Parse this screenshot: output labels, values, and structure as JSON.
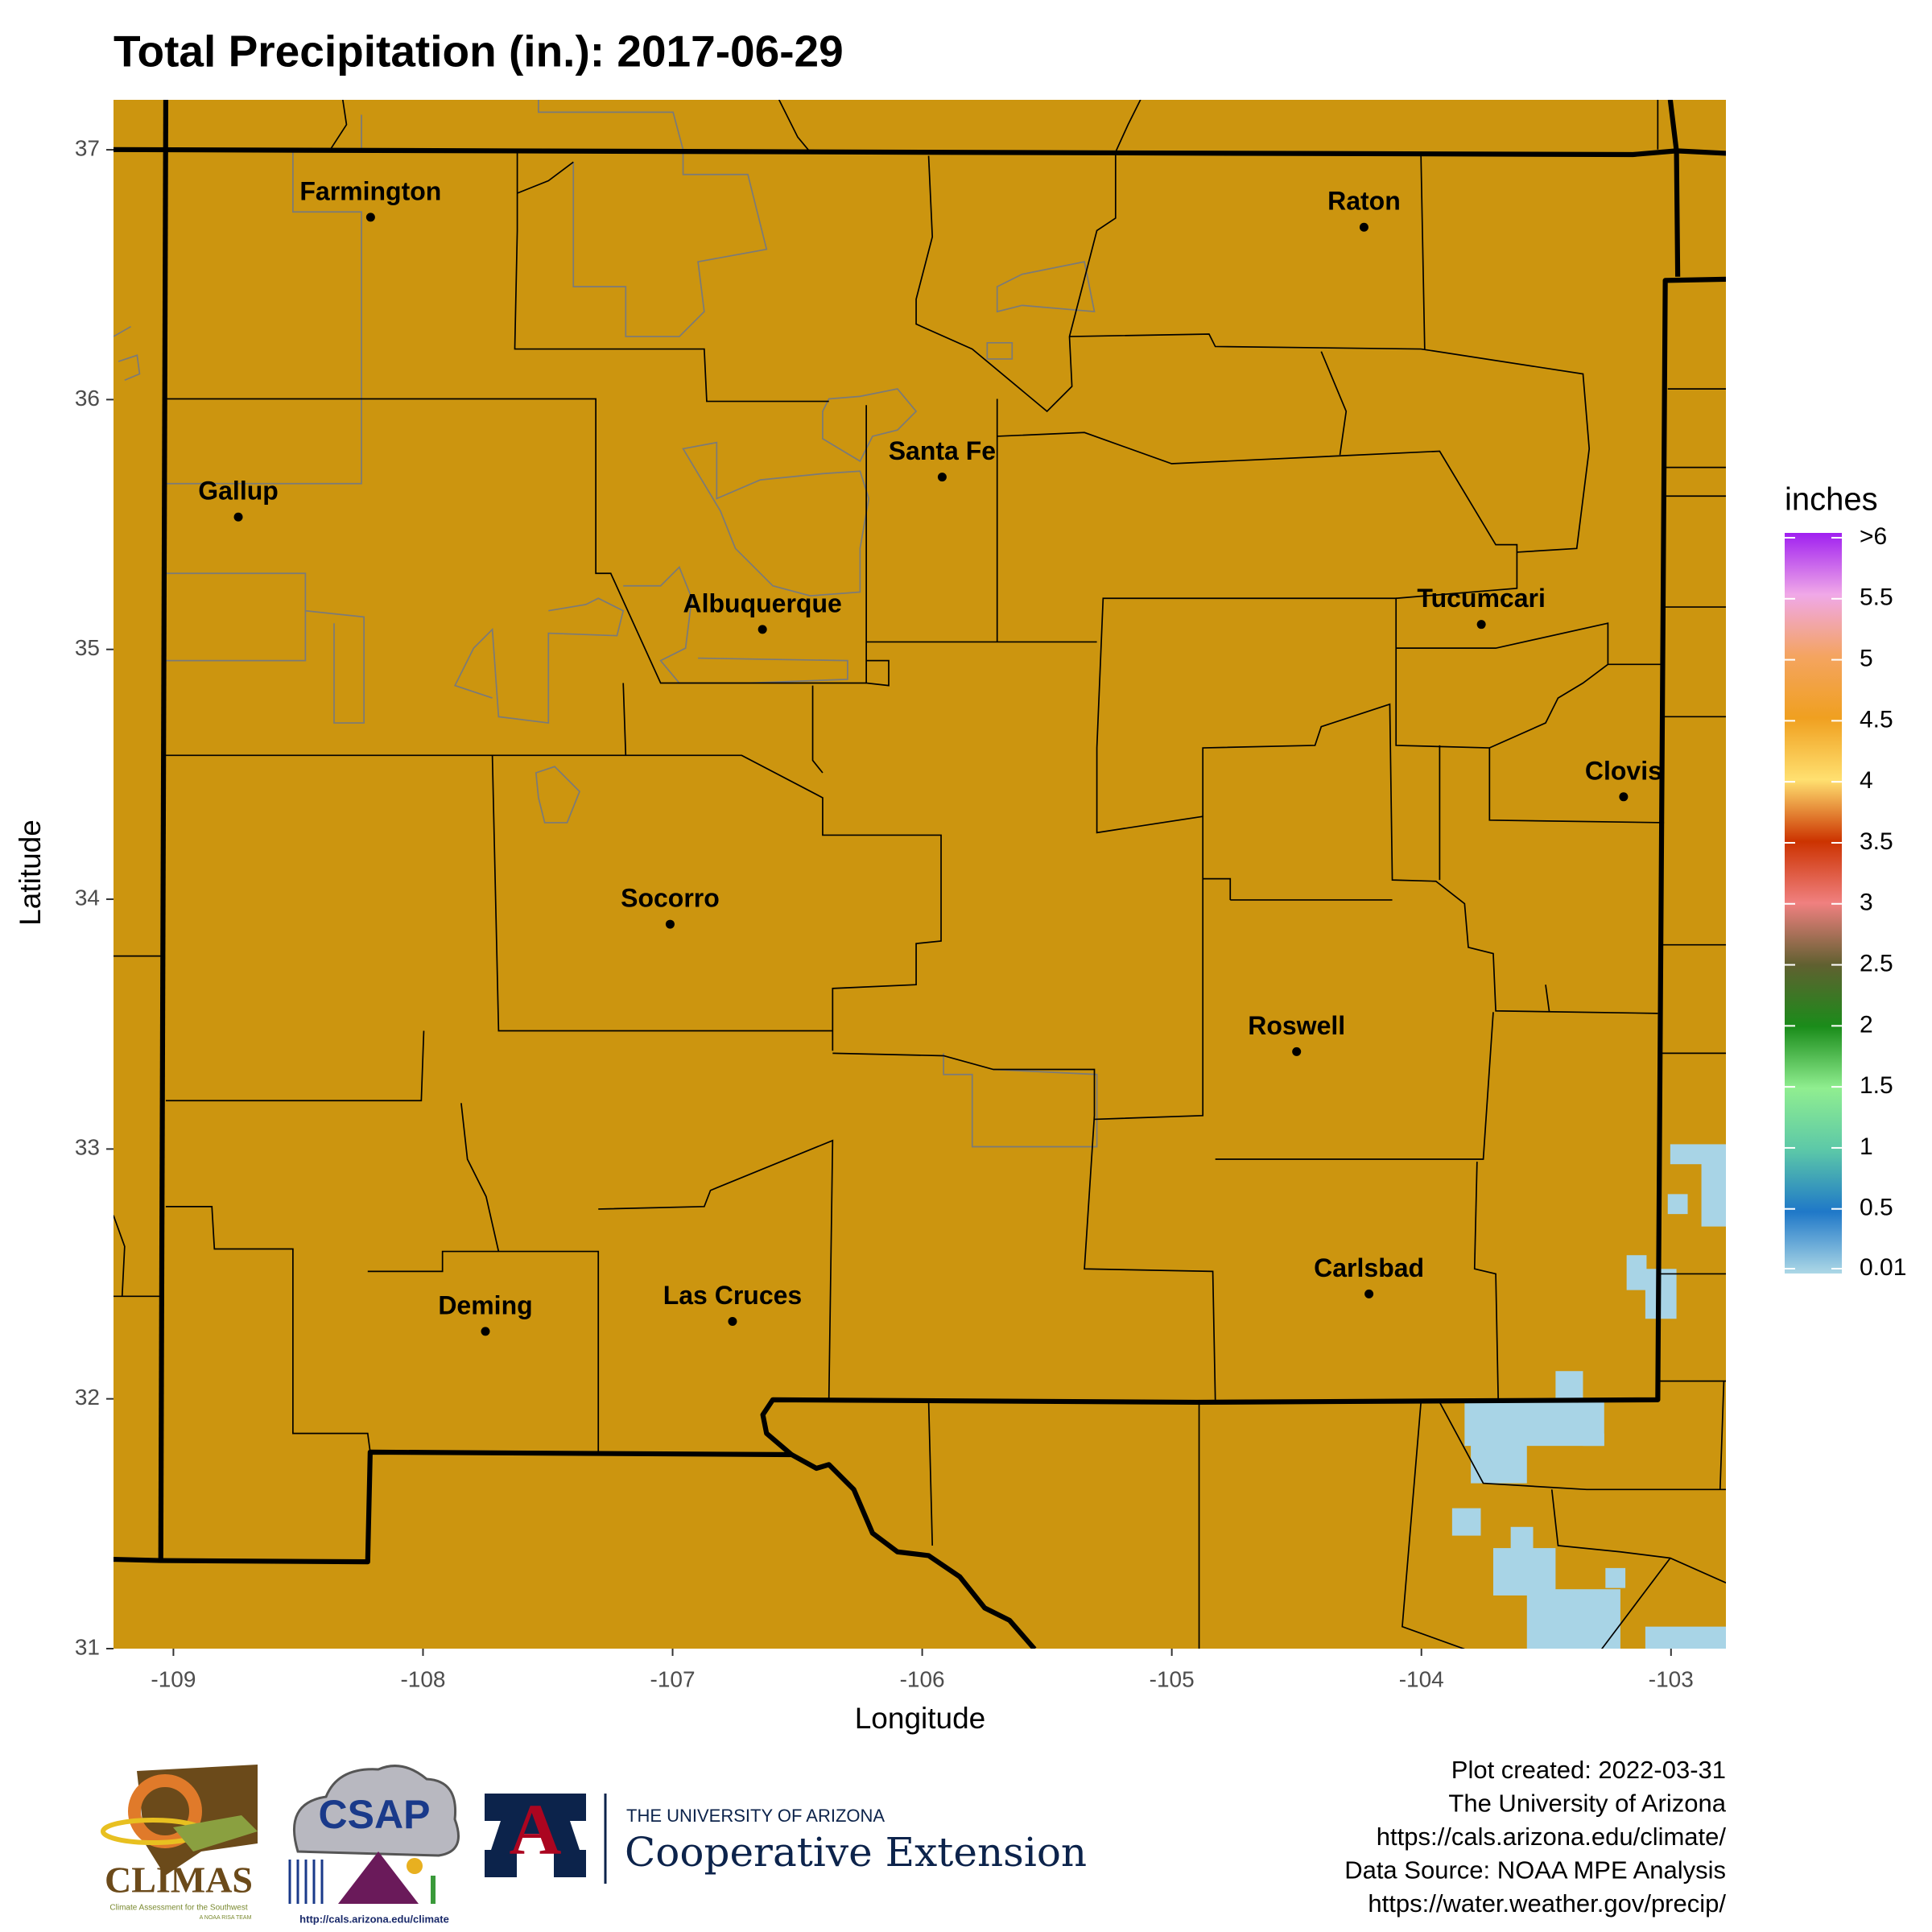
{
  "title": "Total Precipitation (in.): 2017-06-29",
  "map": {
    "xlabel": "Longitude",
    "ylabel": "Latitude",
    "xlim": [
      -109.24,
      -102.78
    ],
    "ylim": [
      31,
      37.2
    ],
    "xticks": [
      -109,
      -108,
      -107,
      -106,
      -105,
      -104,
      -103
    ],
    "yticks": [
      31,
      32,
      33,
      34,
      35,
      36,
      37
    ],
    "fill_color": "#cc950f",
    "cities": [
      {
        "name": "Farmington",
        "lon": -108.21,
        "lat": 36.73
      },
      {
        "name": "Raton",
        "lon": -104.23,
        "lat": 36.69
      },
      {
        "name": "Santa Fe",
        "lon": -105.92,
        "lat": 35.69
      },
      {
        "name": "Gallup",
        "lon": -108.74,
        "lat": 35.53
      },
      {
        "name": "Albuquerque",
        "lon": -106.64,
        "lat": 35.08
      },
      {
        "name": "Tucumcari",
        "lon": -103.76,
        "lat": 35.1
      },
      {
        "name": "Clovis",
        "lon": -103.19,
        "lat": 34.41
      },
      {
        "name": "Socorro",
        "lon": -107.01,
        "lat": 33.9
      },
      {
        "name": "Roswell",
        "lon": -104.5,
        "lat": 33.39
      },
      {
        "name": "Carlsbad",
        "lon": -104.21,
        "lat": 32.42
      },
      {
        "name": "Las Cruces",
        "lon": -106.76,
        "lat": 32.31
      },
      {
        "name": "Deming",
        "lon": -107.75,
        "lat": 32.27
      }
    ]
  },
  "legend": {
    "title": "inches",
    "lim": [
      0.01,
      6
    ],
    "ticks": [
      0.01,
      0.5,
      1,
      1.5,
      2,
      2.5,
      3,
      3.5,
      4,
      4.5,
      5,
      5.5,
      {
        "value": 6,
        "label": ">6"
      }
    ],
    "colors": [
      "#add8e6",
      "#1f78c8",
      "#5cc8a8",
      "#90ee90",
      "#1a8c1a",
      "#606030",
      "#f08080",
      "#cc3300",
      "#ffe070",
      "#f0a020",
      "#f4a460",
      "#f0a8e8",
      "#a020f0"
    ]
  },
  "footer": {
    "lines": [
      "Plot created: 2022-03-31",
      "The University of Arizona",
      "https://cals.arizona.edu/climate/",
      "Data Source: NOAA MPE Analysis",
      "https://water.weather.gov/precip/"
    ]
  },
  "logos": {
    "climas": "CLIMAS",
    "climas_sub": "Climate Assessment for the Southwest",
    "climas_team": "A NOAA RISA TEAM",
    "csap": "CSAP",
    "csap_url": "http://cals.arizona.edu/climate",
    "ua_letter": "A",
    "ua_name": "THE UNIVERSITY OF ARIZONA",
    "ua_unit": "Cooperative Extension"
  }
}
